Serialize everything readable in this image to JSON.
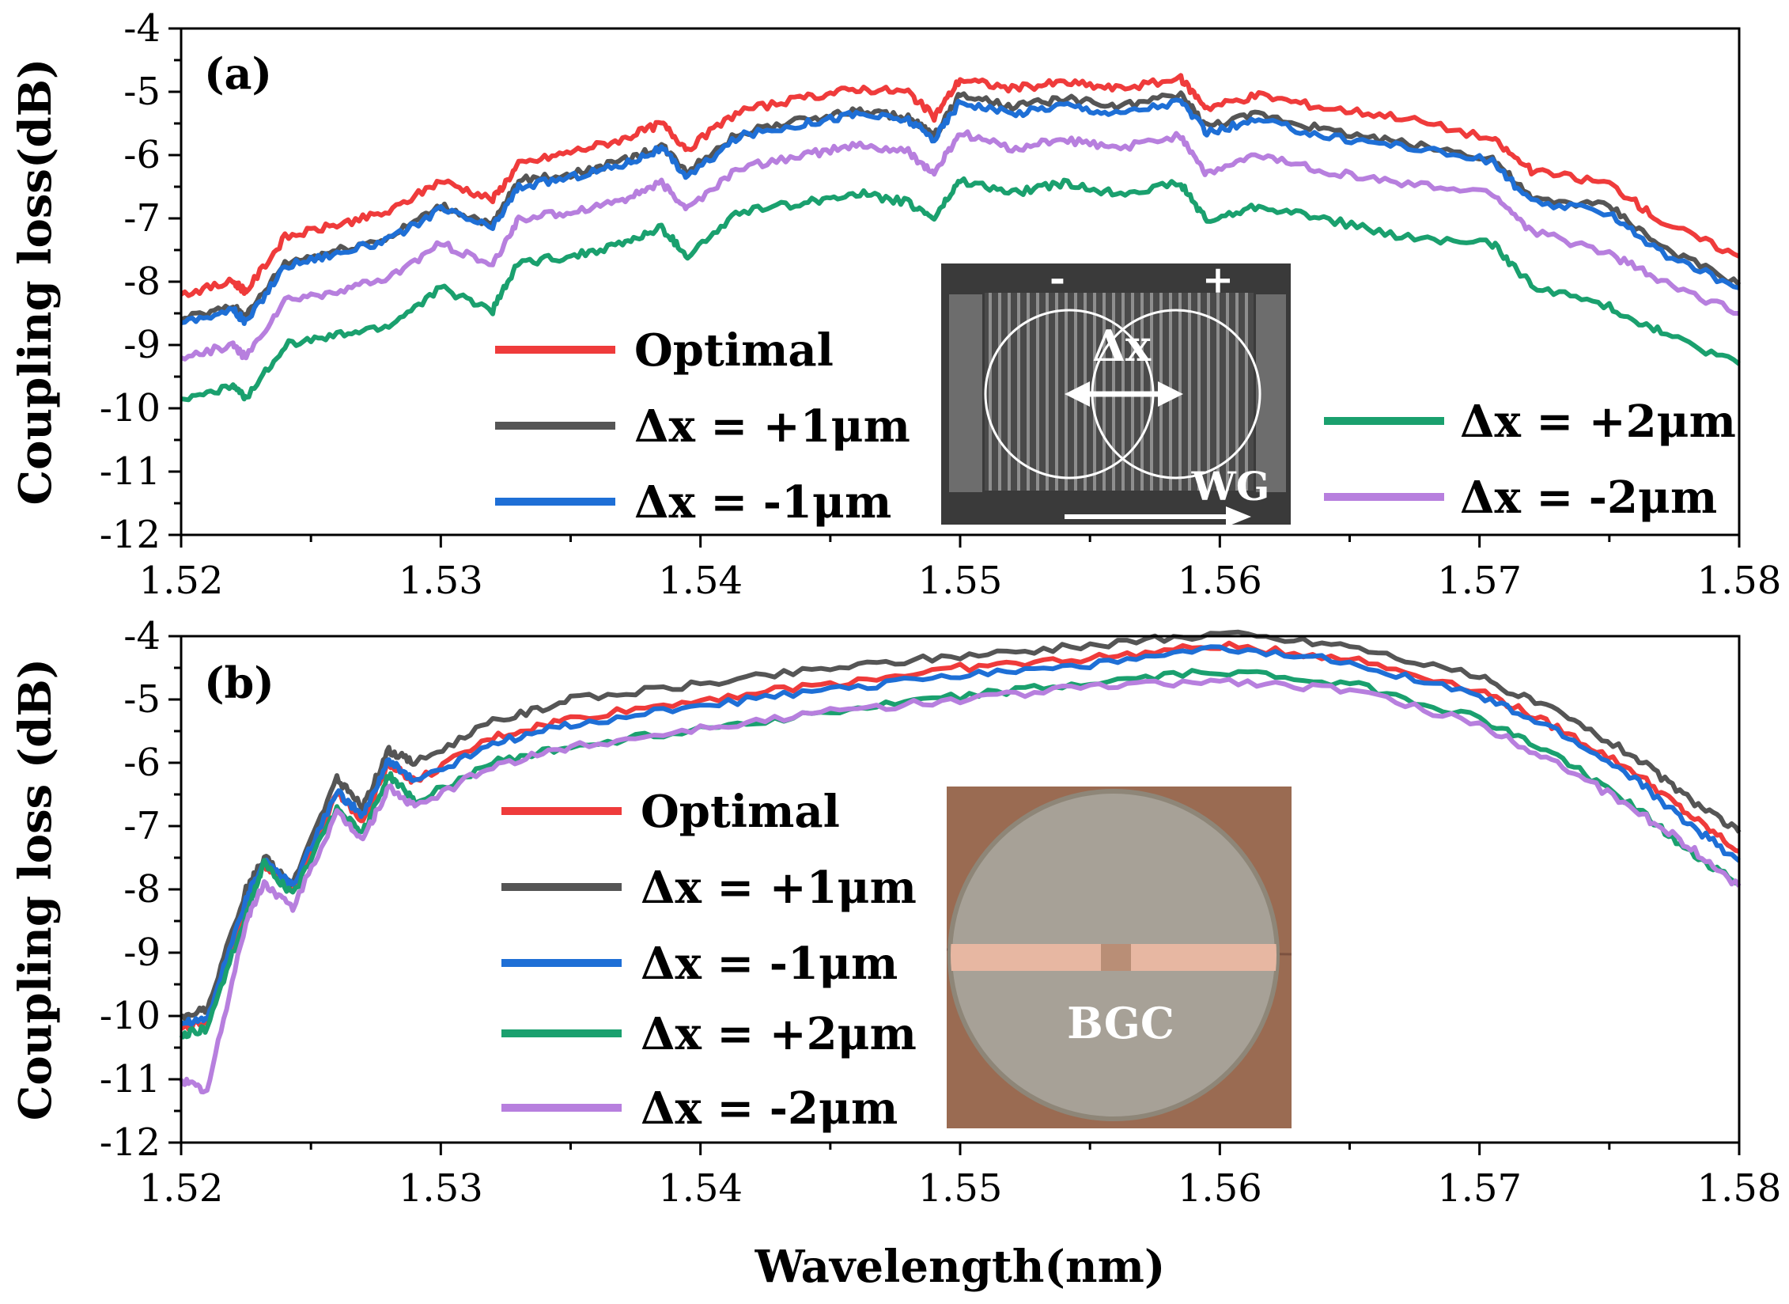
{
  "chart_data": [
    {
      "type": "line",
      "panel_label": "(a)",
      "title": "",
      "xlabel": "",
      "ylabel": "Coupling loss(dB)",
      "xlim": [
        1.52,
        1.58
      ],
      "ylim": [
        -12,
        -4
      ],
      "xticks": [
        "1.52",
        "1.53",
        "1.54",
        "1.55",
        "1.56",
        "1.57",
        "1.58"
      ],
      "yticks": [
        "-12",
        "-11",
        "-10",
        "-9",
        "-8",
        "-7",
        "-6",
        "-5",
        "-4"
      ],
      "x": [
        1.52,
        1.522,
        1.5225,
        1.524,
        1.526,
        1.528,
        1.53,
        1.532,
        1.533,
        1.535,
        1.537,
        1.5385,
        1.5395,
        1.5415,
        1.544,
        1.546,
        1.548,
        1.549,
        1.55,
        1.552,
        1.554,
        1.556,
        1.5585,
        1.5595,
        1.5615,
        1.564,
        1.567,
        1.5705,
        1.572,
        1.575,
        1.577,
        1.58
      ],
      "series": [
        {
          "name": "Optimal",
          "color": "#ef3b3b",
          "values": [
            -8.2,
            -8.0,
            -8.15,
            -7.3,
            -7.1,
            -6.9,
            -6.4,
            -6.7,
            -6.15,
            -5.95,
            -5.75,
            -5.5,
            -5.9,
            -5.3,
            -5.1,
            -4.95,
            -5.0,
            -5.4,
            -4.8,
            -4.95,
            -4.85,
            -4.95,
            -4.8,
            -5.25,
            -5.05,
            -5.25,
            -5.4,
            -5.75,
            -6.25,
            -6.45,
            -7.05,
            -7.6
          ]
        },
        {
          "name": "Δx = +1μm",
          "color": "#555555",
          "values": [
            -8.6,
            -8.4,
            -8.55,
            -7.7,
            -7.5,
            -7.3,
            -6.8,
            -7.1,
            -6.4,
            -6.3,
            -6.1,
            -5.85,
            -6.25,
            -5.65,
            -5.45,
            -5.3,
            -5.4,
            -5.7,
            -5.05,
            -5.25,
            -5.1,
            -5.25,
            -5.05,
            -5.55,
            -5.35,
            -5.6,
            -5.8,
            -6.05,
            -6.7,
            -6.8,
            -7.45,
            -8.05
          ]
        },
        {
          "name": "Δx = -1μm",
          "color": "#1e6fd6",
          "values": [
            -8.65,
            -8.45,
            -8.65,
            -7.75,
            -7.55,
            -7.35,
            -6.85,
            -7.15,
            -6.5,
            -6.35,
            -6.15,
            -5.9,
            -6.35,
            -5.7,
            -5.5,
            -5.35,
            -5.45,
            -5.75,
            -5.15,
            -5.35,
            -5.2,
            -5.35,
            -5.15,
            -5.65,
            -5.45,
            -5.7,
            -5.85,
            -6.1,
            -6.75,
            -6.9,
            -7.55,
            -8.1
          ]
        },
        {
          "name": "Δx = +2μm",
          "color": "#1aa06e",
          "values": [
            -9.85,
            -9.65,
            -9.85,
            -9.0,
            -8.85,
            -8.7,
            -8.1,
            -8.45,
            -7.7,
            -7.6,
            -7.4,
            -7.15,
            -7.6,
            -6.9,
            -6.75,
            -6.6,
            -6.75,
            -7.0,
            -6.4,
            -6.6,
            -6.45,
            -6.6,
            -6.45,
            -7.05,
            -6.8,
            -7.0,
            -7.3,
            -7.4,
            -8.05,
            -8.4,
            -8.8,
            -9.3
          ]
        },
        {
          "name": "Δx = -2μm",
          "color": "#b77fde",
          "values": [
            -9.2,
            -9.0,
            -9.2,
            -8.3,
            -8.15,
            -7.95,
            -7.4,
            -7.75,
            -7.0,
            -6.9,
            -6.7,
            -6.45,
            -6.85,
            -6.2,
            -6.0,
            -5.85,
            -5.95,
            -6.3,
            -5.65,
            -5.9,
            -5.75,
            -5.9,
            -5.7,
            -6.3,
            -6.0,
            -6.25,
            -6.45,
            -6.6,
            -7.2,
            -7.55,
            -8.0,
            -8.5
          ]
        }
      ],
      "inset": {
        "minus_label": "-",
        "plus_label": "+",
        "dx_label": "Δx",
        "wg_label": "WG"
      }
    },
    {
      "type": "line",
      "panel_label": "(b)",
      "title": "",
      "xlabel": "Wavelength(nm)",
      "ylabel": "Coupling loss (dB)",
      "xlim": [
        1.52,
        1.58
      ],
      "ylim": [
        -12,
        -4
      ],
      "xticks": [
        "1.52",
        "1.53",
        "1.54",
        "1.55",
        "1.56",
        "1.57",
        "1.58"
      ],
      "yticks": [
        "-12",
        "-11",
        "-10",
        "-9",
        "-8",
        "-7",
        "-6",
        "-5",
        "-4"
      ],
      "x": [
        1.52,
        1.521,
        1.5225,
        1.5232,
        1.5243,
        1.526,
        1.527,
        1.528,
        1.529,
        1.532,
        1.535,
        1.54,
        1.545,
        1.55,
        1.555,
        1.56,
        1.565,
        1.57,
        1.573,
        1.576,
        1.578,
        1.58
      ],
      "series": [
        {
          "name": "Optimal",
          "color": "#ef3b3b",
          "values": [
            -10.2,
            -10.1,
            -8.2,
            -7.6,
            -8.0,
            -6.5,
            -6.9,
            -6.0,
            -6.3,
            -5.6,
            -5.3,
            -5.0,
            -4.75,
            -4.5,
            -4.35,
            -4.15,
            -4.35,
            -4.85,
            -5.45,
            -6.15,
            -6.8,
            -7.4
          ]
        },
        {
          "name": "Δx = +1μm",
          "color": "#555555",
          "values": [
            -10.0,
            -9.9,
            -8.0,
            -7.5,
            -7.9,
            -6.25,
            -6.7,
            -5.8,
            -6.0,
            -5.35,
            -5.0,
            -4.75,
            -4.5,
            -4.3,
            -4.15,
            -3.95,
            -4.15,
            -4.65,
            -5.2,
            -5.9,
            -6.55,
            -7.1
          ]
        },
        {
          "name": "Δx =  -1μm",
          "color": "#1e6fd6",
          "values": [
            -10.1,
            -10.05,
            -8.15,
            -7.55,
            -7.95,
            -6.45,
            -6.85,
            -5.95,
            -6.3,
            -5.7,
            -5.4,
            -5.1,
            -4.85,
            -4.6,
            -4.45,
            -4.2,
            -4.4,
            -4.95,
            -5.5,
            -6.25,
            -6.95,
            -7.55
          ]
        },
        {
          "name": "Δx = +2μm",
          "color": "#1aa06e",
          "values": [
            -10.3,
            -10.2,
            -8.4,
            -7.6,
            -8.1,
            -6.7,
            -7.1,
            -6.2,
            -6.6,
            -6.0,
            -5.75,
            -5.45,
            -5.2,
            -4.95,
            -4.75,
            -4.55,
            -4.75,
            -5.3,
            -5.9,
            -6.7,
            -7.4,
            -7.9
          ]
        },
        {
          "name": "Δx =  -2μm",
          "color": "#b77fde",
          "values": [
            -11.0,
            -11.2,
            -8.5,
            -7.9,
            -8.3,
            -6.8,
            -7.2,
            -6.4,
            -6.7,
            -6.05,
            -5.75,
            -5.45,
            -5.2,
            -5.0,
            -4.8,
            -4.7,
            -4.85,
            -5.4,
            -6.0,
            -6.75,
            -7.3,
            -7.95
          ]
        }
      ],
      "inset": {
        "label": "BGC"
      }
    }
  ]
}
